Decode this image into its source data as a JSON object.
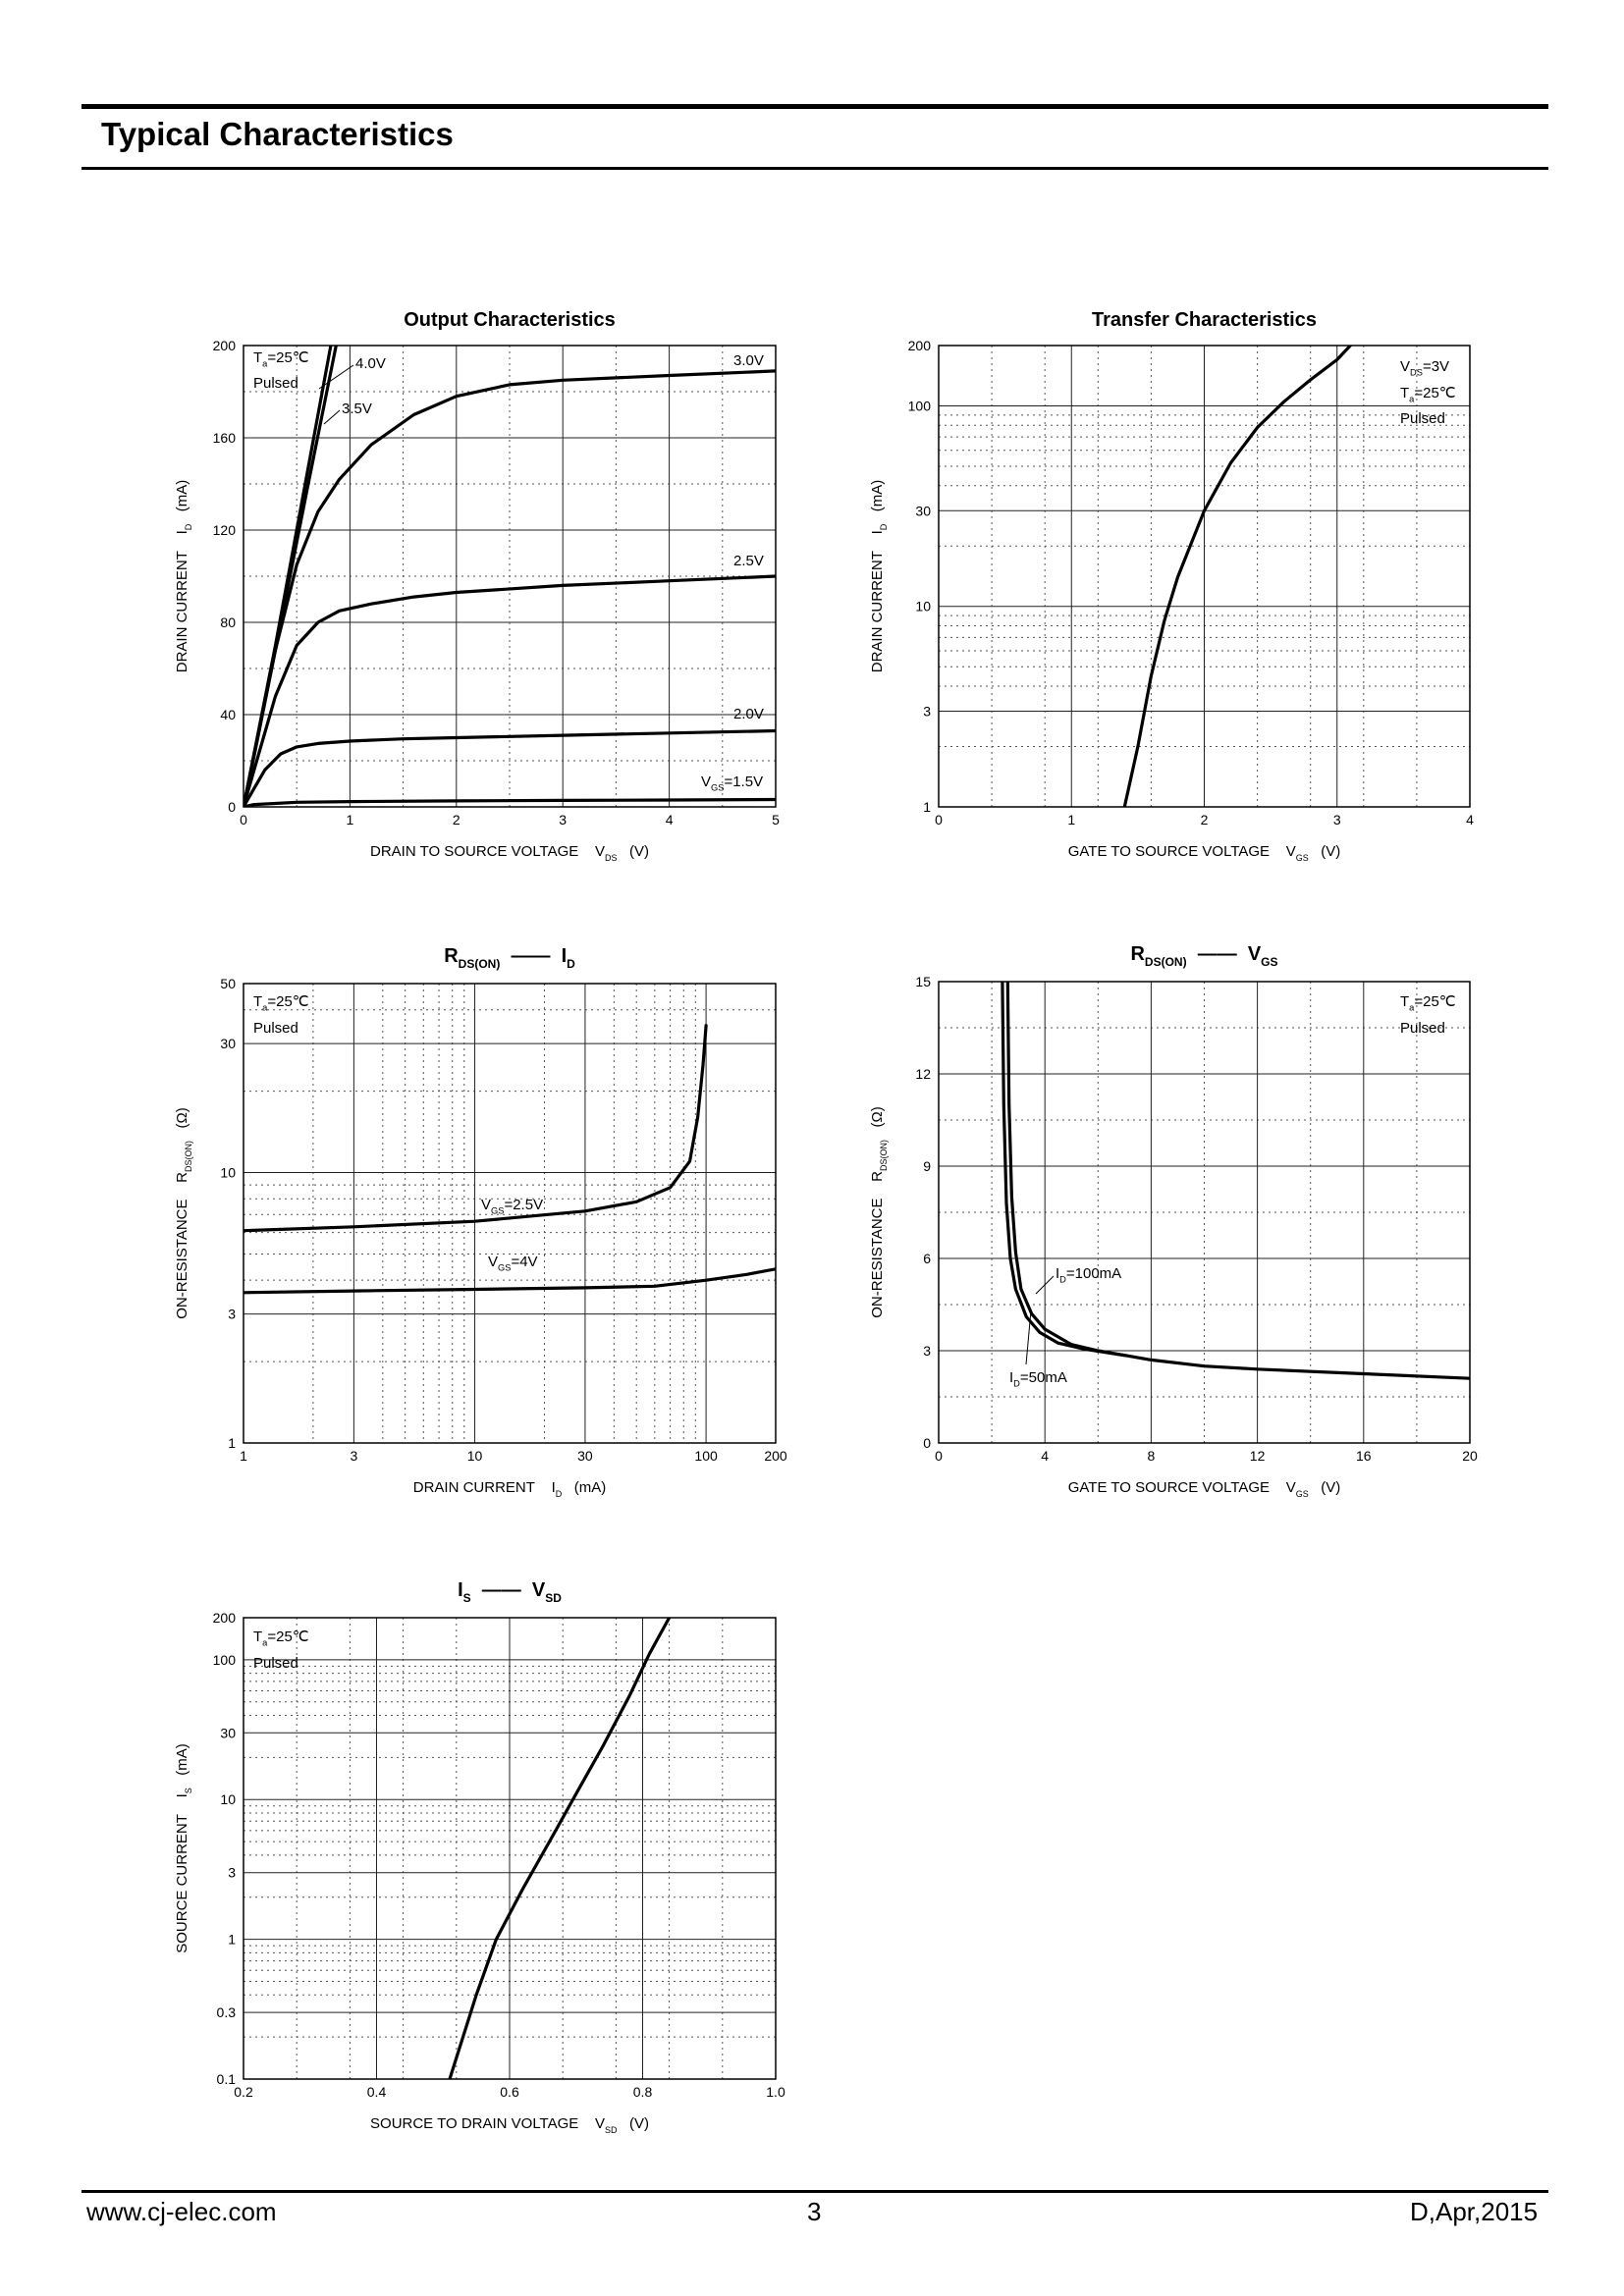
{
  "header": {
    "title": "Typical Characteristics"
  },
  "footer": {
    "website": "www.cj-elec.com",
    "page": "3",
    "revision": "D,Apr,2015"
  },
  "chart_data": [
    {
      "id": "output",
      "type": "line",
      "title": "Output Characteristics",
      "xlabel": "DRAIN TO SOURCE VOLTAGE",
      "xsym": "V",
      "xsub": "DS",
      "xunit": "(V)",
      "ylabel": "DRAIN CURRENT",
      "ysym": "I",
      "ysub": "D",
      "yunit": "(mA)",
      "xscale": "linear",
      "yscale": "linear",
      "xlim": [
        0,
        5
      ],
      "ylim": [
        0,
        200
      ],
      "xticks": [
        0,
        1,
        2,
        3,
        4,
        5
      ],
      "xtick_labels": [
        "0",
        "1",
        "2",
        "3",
        "4",
        "5"
      ],
      "yticks": [
        0,
        40,
        80,
        120,
        160,
        200
      ],
      "ytick_labels": [
        "0",
        "40",
        "80",
        "120",
        "160",
        "200"
      ],
      "grid": true,
      "condition_lines": [
        "Ta=25℃",
        "Pulsed"
      ],
      "series": [
        {
          "name": "4.0V",
          "x": [
            0,
            0.3,
            0.6,
            0.82
          ],
          "y": [
            0,
            70,
            145,
            200
          ]
        },
        {
          "name": "3.5V",
          "x": [
            0,
            0.3,
            0.6,
            0.87
          ],
          "y": [
            0,
            68,
            138,
            200
          ]
        },
        {
          "name": "3.0V",
          "x": [
            0,
            0.1,
            0.3,
            0.5,
            0.7,
            0.9,
            1.2,
            1.6,
            2.0,
            2.5,
            3.0,
            4.0,
            5.0
          ],
          "y": [
            0,
            22,
            68,
            105,
            128,
            142,
            157,
            170,
            178,
            183,
            185,
            187,
            189
          ]
        },
        {
          "name": "2.5V",
          "x": [
            0,
            0.1,
            0.3,
            0.5,
            0.7,
            0.9,
            1.2,
            1.6,
            2.0,
            3.0,
            4.0,
            5.0
          ],
          "y": [
            0,
            16,
            48,
            70,
            80,
            85,
            88,
            91,
            93,
            96,
            98,
            100
          ]
        },
        {
          "name": "2.0V",
          "x": [
            0,
            0.1,
            0.2,
            0.35,
            0.5,
            0.7,
            1.0,
            1.5,
            2.0,
            3.0,
            4.0,
            5.0
          ],
          "y": [
            0,
            8,
            16,
            23,
            26,
            27.5,
            28.5,
            29.5,
            30,
            31,
            32,
            33
          ]
        },
        {
          "name": "VGS=1.5V",
          "x": [
            0,
            0.1,
            0.5,
            1.0,
            2.0,
            3.0,
            4.0,
            5.0
          ],
          "y": [
            0,
            1,
            2,
            2.3,
            2.6,
            2.8,
            3,
            3.2
          ]
        }
      ],
      "annotations": [
        "4.0V",
        "3.5V",
        "3.0V",
        "2.5V",
        "2.0V",
        "VGS=1.5V"
      ]
    },
    {
      "id": "transfer",
      "type": "line",
      "title": "Transfer Characteristics",
      "xlabel": "GATE TO SOURCE VOLTAGE",
      "xsym": "V",
      "xsub": "GS",
      "xunit": "(V)",
      "ylabel": "DRAIN CURRENT",
      "ysym": "I",
      "ysub": "D",
      "yunit": "(mA)",
      "xscale": "linear",
      "yscale": "log",
      "xlim": [
        0,
        4
      ],
      "ylim": [
        1,
        200
      ],
      "xticks": [
        0,
        1,
        2,
        3,
        4
      ],
      "xtick_labels": [
        "0",
        "1",
        "2",
        "3",
        "4"
      ],
      "yticks": [
        1,
        3,
        10,
        30,
        100,
        200
      ],
      "ytick_labels": [
        "1",
        "3",
        "10",
        "30",
        "100",
        "200"
      ],
      "grid": true,
      "condition_lines": [
        "VDS=3V",
        "Ta=25℃",
        "Pulsed"
      ],
      "series": [
        {
          "name": "",
          "x": [
            1.4,
            1.5,
            1.6,
            1.7,
            1.8,
            2.0,
            2.2,
            2.4,
            2.6,
            2.8,
            3.0,
            3.1
          ],
          "y": [
            1.0,
            2.0,
            4.5,
            8.5,
            14.0,
            30.0,
            52.0,
            78.0,
            105.0,
            135.0,
            170.0,
            200.0
          ]
        }
      ]
    },
    {
      "id": "rds_id",
      "type": "line",
      "title_parts": {
        "a": "R",
        "a_sub": "DS(ON)",
        "b": "I",
        "b_sub": "D"
      },
      "xlabel": "DRAIN CURRENT",
      "xsym": "I",
      "xsub": "D",
      "xunit": "(mA)",
      "ylabel": "ON-RESISTANCE",
      "ysym": "R",
      "ysub": "DS(ON)",
      "yunit": "(Ω)",
      "xscale": "log",
      "yscale": "log",
      "xlim": [
        1,
        200
      ],
      "ylim": [
        1,
        50
      ],
      "xticks": [
        1,
        3,
        10,
        30,
        100,
        200
      ],
      "xtick_labels": [
        "1",
        "3",
        "10",
        "30",
        "100",
        "200"
      ],
      "yticks": [
        1,
        3,
        10,
        30,
        50
      ],
      "ytick_labels": [
        "1",
        "3",
        "10",
        "30",
        "50"
      ],
      "grid": true,
      "condition_lines": [
        "Ta=25℃",
        "Pulsed"
      ],
      "series": [
        {
          "name": "VGS=2.5V",
          "x": [
            1,
            3,
            10,
            30,
            50,
            70,
            85,
            92,
            97,
            100
          ],
          "y": [
            6.1,
            6.3,
            6.6,
            7.2,
            7.8,
            8.8,
            11.0,
            16.0,
            25.0,
            35.0
          ]
        },
        {
          "name": "VGS=4V",
          "x": [
            1,
            3,
            10,
            30,
            60,
            100,
            150,
            200
          ],
          "y": [
            3.6,
            3.65,
            3.7,
            3.75,
            3.8,
            4.0,
            4.2,
            4.4
          ]
        }
      ],
      "annotations": [
        "VGS=2.5V",
        "VGS=4V"
      ]
    },
    {
      "id": "rds_vgs",
      "type": "line",
      "title_parts": {
        "a": "R",
        "a_sub": "DS(ON)",
        "b": "V",
        "b_sub": "GS"
      },
      "xlabel": "GATE TO SOURCE VOLTAGE",
      "xsym": "V",
      "xsub": "GS",
      "xunit": "(V)",
      "ylabel": "ON-RESISTANCE",
      "ysym": "R",
      "ysub": "DS(ON)",
      "yunit": "(Ω)",
      "xscale": "linear",
      "yscale": "linear",
      "xlim": [
        0,
        20
      ],
      "ylim": [
        0,
        15
      ],
      "xticks": [
        0,
        4,
        8,
        12,
        16,
        20
      ],
      "xtick_labels": [
        "0",
        "4",
        "8",
        "12",
        "16",
        "20"
      ],
      "yticks": [
        0,
        3,
        6,
        9,
        12,
        15
      ],
      "ytick_labels": [
        "0",
        "3",
        "6",
        "9",
        "12",
        "15"
      ],
      "grid": true,
      "condition_lines": [
        "Ta=25℃",
        "Pulsed"
      ],
      "series": [
        {
          "name": "ID=100mA",
          "x": [
            2.6,
            2.65,
            2.75,
            2.9,
            3.1,
            3.5,
            4.0,
            5.0,
            6.0,
            8.0,
            10.0,
            12.0,
            16.0,
            20.0
          ],
          "y": [
            15.0,
            11.0,
            8.0,
            6.2,
            5.0,
            4.2,
            3.7,
            3.2,
            3.0,
            2.7,
            2.5,
            2.4,
            2.25,
            2.1
          ]
        },
        {
          "name": "ID=50mA",
          "x": [
            2.4,
            2.45,
            2.55,
            2.7,
            2.9,
            3.3,
            3.8,
            4.5,
            5.5,
            7.0
          ],
          "y": [
            15.0,
            11.0,
            7.8,
            6.0,
            5.0,
            4.1,
            3.6,
            3.25,
            3.05,
            2.85
          ]
        }
      ],
      "annotations": [
        "ID=100mA",
        "ID=50mA"
      ]
    },
    {
      "id": "is_vsd",
      "type": "line",
      "title_parts": {
        "a": "I",
        "a_sub": "S",
        "b": "V",
        "b_sub": "SD"
      },
      "xlabel": "SOURCE TO DRAIN VOLTAGE",
      "xsym": "V",
      "xsub": "SD",
      "xunit": "(V)",
      "ylabel": "SOURCE CURRENT",
      "ysym": "I",
      "ysub": "S",
      "yunit": "(mA)",
      "xscale": "linear",
      "yscale": "log",
      "xlim": [
        0.2,
        1.0
      ],
      "ylim": [
        0.1,
        200
      ],
      "xticks": [
        0.2,
        0.4,
        0.6,
        0.8,
        1.0
      ],
      "xtick_labels": [
        "0.2",
        "0.4",
        "0.6",
        "0.8",
        "1.0"
      ],
      "yticks": [
        0.1,
        0.3,
        1,
        3,
        10,
        30,
        100,
        200
      ],
      "ytick_labels": [
        "0.1",
        "0.3",
        "1",
        "3",
        "10",
        "30",
        "100",
        "200"
      ],
      "grid": true,
      "condition_lines": [
        "Ta=25℃",
        "Pulsed"
      ],
      "series": [
        {
          "name": "",
          "x": [
            0.51,
            0.55,
            0.58,
            0.62,
            0.66,
            0.7,
            0.74,
            0.78,
            0.81,
            0.84
          ],
          "y": [
            0.1,
            0.4,
            1.0,
            2.3,
            5.0,
            11.0,
            24.0,
            55.0,
            110.0,
            200.0
          ]
        }
      ]
    }
  ]
}
